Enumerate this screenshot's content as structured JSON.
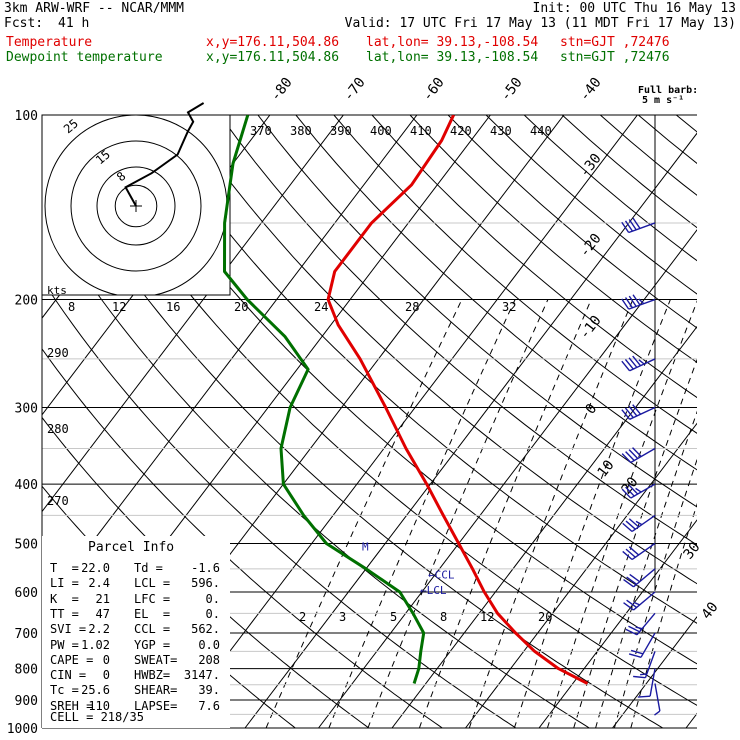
{
  "header": {
    "model": "3km ARW-WRF -- NCAR/MMM",
    "init": "Init: 00 UTC Thu 16 May 13",
    "fcst_label": "Fcst:",
    "fcst_value": "41 h",
    "valid": "Valid: 17 UTC Fri 17 May 13 (11 MDT Fri 17 May 13)",
    "temp_label": "Temperature",
    "dew_label": "Dewpoint temperature",
    "xy": "x,y=176.11,504.86",
    "latlon": "lat,lon= 39.13,-108.54",
    "stn": "stn=GJT ,72476"
  },
  "barb_legend": {
    "title": "Full barb:",
    "value": "5 m s⁻¹"
  },
  "chart_data": {
    "type": "line",
    "title": "",
    "y_axis": "Pressure (hPa), log scale",
    "pressure_ticks": [
      100,
      200,
      300,
      400,
      500,
      600,
      700,
      800,
      900,
      1000
    ],
    "isotherm_labels": [
      -80,
      -70,
      -60,
      -50,
      -40,
      -30,
      -20,
      -10,
      0,
      10,
      20,
      30,
      40
    ],
    "theta_labels": [
      370,
      380,
      390,
      400,
      410,
      420,
      430,
      440
    ],
    "mixing_ratio_labels_upper": [
      8,
      12,
      16,
      20,
      24,
      28,
      32
    ],
    "mixing_ratio_labels_lower": [
      2,
      3,
      5,
      8,
      12,
      20
    ],
    "left_theta_labels": [
      290,
      280,
      270
    ],
    "series": [
      {
        "name": "Temperature",
        "color": "#e00000",
        "points": [
          [
            846,
            22.0
          ],
          [
            800,
            16.5
          ],
          [
            750,
            11.5
          ],
          [
            700,
            7.0
          ],
          [
            650,
            2.5
          ],
          [
            600,
            -1.5
          ],
          [
            550,
            -5.5
          ],
          [
            500,
            -10.0
          ],
          [
            450,
            -15.0
          ],
          [
            400,
            -20.5
          ],
          [
            350,
            -27.0
          ],
          [
            300,
            -34.0
          ],
          [
            250,
            -42.5
          ],
          [
            220,
            -49.0
          ],
          [
            200,
            -53.0
          ],
          [
            180,
            -55.0
          ],
          [
            150,
            -55.0
          ],
          [
            130,
            -53.5
          ],
          [
            110,
            -54.0
          ],
          [
            100,
            -55.0
          ]
        ]
      },
      {
        "name": "Dewpoint temperature",
        "color": "#007000",
        "points": [
          [
            846,
            -1.6
          ],
          [
            800,
            -2.5
          ],
          [
            750,
            -4.0
          ],
          [
            700,
            -5.5
          ],
          [
            650,
            -9.0
          ],
          [
            600,
            -13.0
          ],
          [
            550,
            -20.0
          ],
          [
            500,
            -28.0
          ],
          [
            450,
            -34.0
          ],
          [
            400,
            -40.0
          ],
          [
            350,
            -44.0
          ],
          [
            300,
            -47.0
          ],
          [
            260,
            -48.5
          ],
          [
            230,
            -55.0
          ],
          [
            200,
            -64.0
          ],
          [
            180,
            -70.0
          ],
          [
            150,
            -75.0
          ],
          [
            120,
            -80.0
          ],
          [
            100,
            -83.0
          ]
        ]
      }
    ],
    "hodograph": {
      "ring_labels": [
        "8",
        "15",
        "25"
      ],
      "unit_label": "kts",
      "trace_uv": [
        [
          0,
          0
        ],
        [
          -2,
          4
        ],
        [
          3,
          7
        ],
        [
          8,
          11
        ],
        [
          10,
          16
        ],
        [
          11,
          18
        ],
        [
          10,
          20
        ],
        [
          13,
          22
        ]
      ]
    },
    "wind_barbs": [
      {
        "p": 150,
        "dir": 250,
        "spd": 40
      },
      {
        "p": 200,
        "dir": 250,
        "spd": 45
      },
      {
        "p": 250,
        "dir": 245,
        "spd": 45
      },
      {
        "p": 300,
        "dir": 245,
        "spd": 40
      },
      {
        "p": 350,
        "dir": 240,
        "spd": 40
      },
      {
        "p": 400,
        "dir": 240,
        "spd": 35
      },
      {
        "p": 450,
        "dir": 235,
        "spd": 35
      },
      {
        "p": 500,
        "dir": 235,
        "spd": 30
      },
      {
        "p": 550,
        "dir": 230,
        "spd": 30
      },
      {
        "p": 600,
        "dir": 230,
        "spd": 25
      },
      {
        "p": 650,
        "dir": 220,
        "spd": 25
      },
      {
        "p": 700,
        "dir": 210,
        "spd": 20
      },
      {
        "p": 750,
        "dir": 200,
        "spd": 15
      },
      {
        "p": 800,
        "dir": 190,
        "spd": 10
      },
      {
        "p": 846,
        "dir": 170,
        "spd": 8
      }
    ],
    "markers": [
      {
        "p": 506,
        "label": "M"
      },
      {
        "p": 562,
        "label": "←CCL"
      },
      {
        "p": 596,
        "label": "←LCL"
      }
    ]
  },
  "parcel_info": {
    "title": "Parcel Info",
    "rows": [
      [
        "T  =",
        "22.0",
        "Td =",
        "-1.6"
      ],
      [
        "LI =",
        "2.4",
        "LCL =",
        "596."
      ],
      [
        "K  =",
        "21",
        "LFC =",
        "0."
      ],
      [
        "TT =",
        "47",
        "EL  =",
        "0."
      ],
      [
        "SVI =",
        "2.2",
        "CCL =",
        "562."
      ],
      [
        "PW =",
        "1.02",
        "YGP =",
        "0.0"
      ],
      [
        "CAPE =",
        "0",
        "SWEAT=",
        "208"
      ],
      [
        "CIN =",
        "0",
        "HWBZ=",
        "3147."
      ],
      [
        "Tc =",
        "25.6",
        "SHEAR=",
        "39."
      ],
      [
        "SREH =",
        "110",
        "LAPSE=",
        "7.6"
      ]
    ],
    "cell": "CELL = 218/35"
  }
}
